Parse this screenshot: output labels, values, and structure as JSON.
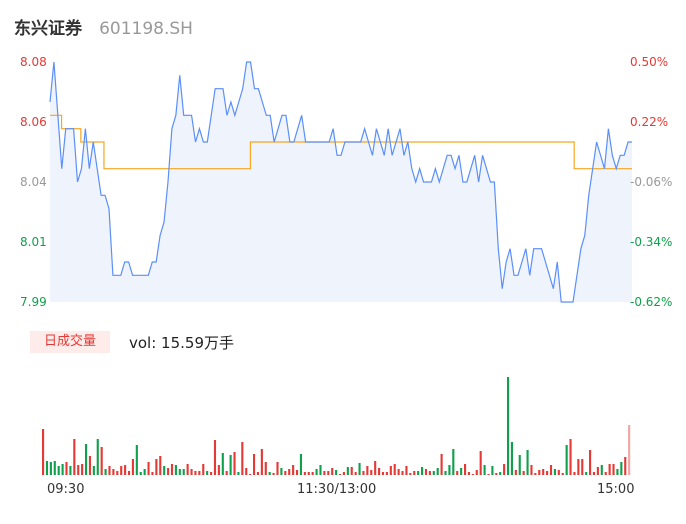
{
  "header": {
    "name": "东兴证券",
    "code": "601198.SH"
  },
  "price_axis": {
    "left_ticks": [
      "8.08",
      "8.06",
      "8.04",
      "8.01",
      "7.99"
    ],
    "right_ticks": [
      "0.50%",
      "0.22%",
      "-0.06%",
      "-0.34%",
      "-0.62%"
    ]
  },
  "volume": {
    "tag": "日成交量",
    "text": "vol: 15.59万手"
  },
  "time_axis": {
    "labels": [
      "09:30",
      "11:30/13:00",
      "15:00"
    ]
  },
  "colors": {
    "up": "#e53935",
    "down": "#10a04b",
    "neutral": "#999999",
    "price_line": "#5b8ff9",
    "avg_line": "#f5a623",
    "fill": "#eef3fc"
  },
  "chart_data": [
    {
      "type": "line",
      "title": "",
      "xlabel": "",
      "ylabel": "",
      "ylim": [
        7.99,
        8.08
      ],
      "x_ticks": [
        "09:30",
        "11:30/13:00",
        "15:00"
      ],
      "series": [
        {
          "values": [
            8.065,
            8.08,
            8.06,
            8.04,
            8.055,
            8.055,
            8.055,
            8.035,
            8.04,
            8.055,
            8.04,
            8.05,
            8.04,
            8.03,
            8.03,
            8.025,
            8.0,
            8.0,
            8.0,
            8.005,
            8.005,
            8.0,
            8.0,
            8.0,
            8.0,
            8.0,
            8.005,
            8.005,
            8.015,
            8.02,
            8.035,
            8.055,
            8.06,
            8.075,
            8.06,
            8.06,
            8.06,
            8.05,
            8.055,
            8.05,
            8.05,
            8.06,
            8.07,
            8.07,
            8.07,
            8.06,
            8.065,
            8.06,
            8.065,
            8.07,
            8.08,
            8.08,
            8.07,
            8.07,
            8.065,
            8.06,
            8.06,
            8.05,
            8.055,
            8.06,
            8.06,
            8.05,
            8.05,
            8.055,
            8.06,
            8.05,
            8.05,
            8.05,
            8.05,
            8.05,
            8.05,
            8.05,
            8.055,
            8.045,
            8.045,
            8.05,
            8.05,
            8.05,
            8.05,
            8.05,
            8.055,
            8.05,
            8.045,
            8.055,
            8.05,
            8.045,
            8.055,
            8.045,
            8.05,
            8.055,
            8.045,
            8.05,
            8.04,
            8.035,
            8.04,
            8.035,
            8.035,
            8.035,
            8.04,
            8.035,
            8.04,
            8.045,
            8.045,
            8.04,
            8.045,
            8.035,
            8.035,
            8.04,
            8.045,
            8.035,
            8.045,
            8.04,
            8.035,
            8.035,
            8.01,
            7.995,
            8.005,
            8.01,
            8.0,
            8.0,
            8.005,
            8.01,
            8.0,
            8.01,
            8.01,
            8.01,
            8.005,
            8.0,
            7.995,
            8.005,
            7.99,
            7.99,
            7.99,
            7.99,
            8.0,
            8.01,
            8.015,
            8.03,
            8.04,
            8.05,
            8.045,
            8.04,
            8.055,
            8.045,
            8.04,
            8.045,
            8.045,
            8.05,
            8.05
          ]
        },
        {
          "values": [
            8.06,
            8.06,
            8.06,
            8.055,
            8.055,
            8.055,
            8.055,
            8.055,
            8.05,
            8.05,
            8.05,
            8.05,
            8.05,
            8.05,
            8.04,
            8.04,
            8.04,
            8.04,
            8.04,
            8.04,
            8.04,
            8.04,
            8.04,
            8.04,
            8.04,
            8.04,
            8.04,
            8.04,
            8.04,
            8.04,
            8.04,
            8.04,
            8.04,
            8.04,
            8.04,
            8.04,
            8.04,
            8.04,
            8.04,
            8.04,
            8.04,
            8.04,
            8.04,
            8.04,
            8.04,
            8.04,
            8.04,
            8.04,
            8.04,
            8.04,
            8.04,
            8.04,
            8.05,
            8.05,
            8.05,
            8.05,
            8.05,
            8.05,
            8.05,
            8.05,
            8.05,
            8.05,
            8.05,
            8.05,
            8.05,
            8.05,
            8.05,
            8.05,
            8.05,
            8.05,
            8.05,
            8.05,
            8.05,
            8.05,
            8.05,
            8.05,
            8.05,
            8.05,
            8.05,
            8.05,
            8.05,
            8.05,
            8.05,
            8.05,
            8.05,
            8.05,
            8.05,
            8.05,
            8.05,
            8.05,
            8.05,
            8.05,
            8.05,
            8.05,
            8.05,
            8.05,
            8.05,
            8.05,
            8.05,
            8.05,
            8.05,
            8.05,
            8.05,
            8.05,
            8.05,
            8.05,
            8.05,
            8.05,
            8.05,
            8.05,
            8.05,
            8.05,
            8.05,
            8.05,
            8.05,
            8.05,
            8.05,
            8.05,
            8.05,
            8.05,
            8.05,
            8.05,
            8.05,
            8.05,
            8.05,
            8.05,
            8.05,
            8.05,
            8.05,
            8.05,
            8.05,
            8.05,
            8.05,
            8.05,
            8.05,
            8.05,
            8.04,
            8.04,
            8.04,
            8.04,
            8.04,
            8.04,
            8.04,
            8.04,
            8.04,
            8.04,
            8.04,
            8.04,
            8.04,
            8.04,
            8.04,
            8.04
          ]
        }
      ]
    },
    {
      "type": "bar",
      "title": "",
      "xlabel": "",
      "ylabel": "",
      "x_ticks": [
        "09:30",
        "11:30/13:00",
        "15:00"
      ],
      "series": [
        {
          "values": [
            46,
            14,
            13,
            14,
            9,
            11,
            13,
            9,
            36,
            10,
            11,
            31,
            19,
            9,
            36,
            28,
            6,
            9,
            6,
            4,
            9,
            10,
            4,
            16,
            30,
            3,
            6,
            13,
            3,
            16,
            19,
            9,
            7,
            11,
            10,
            6,
            6,
            11,
            6,
            4,
            4,
            11,
            4,
            3,
            35,
            10,
            22,
            4,
            20,
            23,
            3,
            33,
            7,
            1,
            21,
            3,
            26,
            13,
            3,
            2,
            13,
            7,
            4,
            6,
            10,
            5,
            21,
            3,
            3,
            3,
            6,
            10,
            4,
            4,
            7,
            5,
            1,
            3,
            8,
            8,
            3,
            12,
            4,
            9,
            5,
            14,
            7,
            3,
            3,
            9,
            11,
            6,
            4,
            9,
            2,
            4,
            4,
            8,
            6,
            4,
            4,
            7,
            21,
            4,
            10,
            26,
            4,
            7,
            11,
            3,
            1,
            5,
            24,
            10,
            1,
            9,
            2,
            3,
            11,
            98,
            33,
            5,
            20,
            4,
            25,
            10,
            2,
            5,
            6,
            4,
            10,
            6,
            5,
            2,
            30,
            36,
            3,
            16,
            16,
            3,
            25,
            3,
            8,
            10,
            3,
            11,
            11,
            6,
            13,
            18,
            50
          ]
        }
      ],
      "bar_colors": [
        "u",
        "d",
        "d",
        "d",
        "d",
        "d",
        "u",
        "d",
        "u",
        "u",
        "u",
        "d",
        "u",
        "d",
        "d",
        "u",
        "d",
        "u",
        "u",
        "u",
        "u",
        "u",
        "u",
        "u",
        "d",
        "d",
        "d",
        "u",
        "u",
        "u",
        "u",
        "d",
        "u",
        "u",
        "d",
        "d",
        "d",
        "u",
        "u",
        "u",
        "u",
        "u",
        "d",
        "u",
        "u",
        "u",
        "d",
        "u",
        "d",
        "u",
        "d",
        "u",
        "u",
        "u",
        "u",
        "u",
        "u",
        "u",
        "d",
        "u",
        "u",
        "d",
        "u",
        "u",
        "u",
        "u",
        "d",
        "u",
        "u",
        "u",
        "d",
        "d",
        "u",
        "u",
        "u",
        "d",
        "u",
        "u",
        "d",
        "u",
        "u",
        "d",
        "u",
        "u",
        "u",
        "u",
        "u",
        "u",
        "u",
        "u",
        "u",
        "u",
        "u",
        "u",
        "u",
        "u",
        "d",
        "d",
        "u",
        "u",
        "d",
        "d",
        "u",
        "d",
        "d",
        "d",
        "u",
        "d",
        "u",
        "u",
        "u",
        "u",
        "u",
        "d",
        "u",
        "d",
        "u",
        "d",
        "u",
        "d",
        "d",
        "u",
        "d",
        "u",
        "d",
        "u",
        "u",
        "u",
        "u",
        "u",
        "u",
        "d",
        "u",
        "u",
        "d",
        "u",
        "u",
        "u",
        "u",
        "d",
        "u",
        "u",
        "u",
        "d",
        "u",
        "u",
        "u",
        "d",
        "d",
        "u",
        "n"
      ]
    }
  ]
}
